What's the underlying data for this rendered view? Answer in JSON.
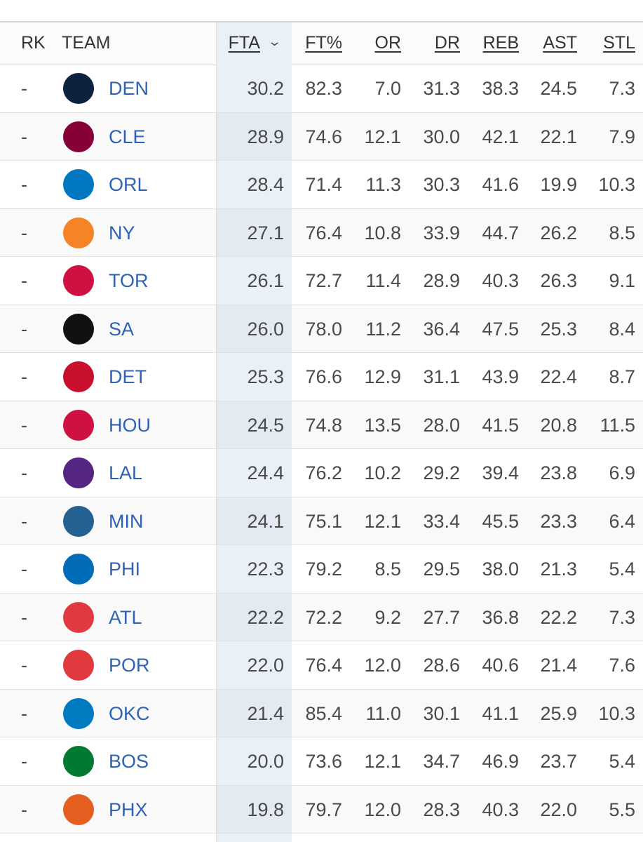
{
  "table": {
    "headers": [
      "RK",
      "TEAM",
      "FTA",
      "FT%",
      "OR",
      "DR",
      "REB",
      "AST",
      "STL"
    ],
    "rows": [
      [
        "-",
        "DEN",
        "30.2",
        "82.3",
        "7.0",
        "31.3",
        "38.3",
        "24.5",
        "7.3"
      ],
      [
        "-",
        "CLE",
        "28.9",
        "74.6",
        "12.1",
        "30.0",
        "42.1",
        "22.1",
        "7.9"
      ],
      [
        "-",
        "ORL",
        "28.4",
        "71.4",
        "11.3",
        "30.3",
        "41.6",
        "19.9",
        "10.3"
      ],
      [
        "-",
        "NY",
        "27.1",
        "76.4",
        "10.8",
        "33.9",
        "44.7",
        "26.2",
        "8.5"
      ],
      [
        "-",
        "TOR",
        "26.1",
        "72.7",
        "11.4",
        "28.9",
        "40.3",
        "26.3",
        "9.1"
      ],
      [
        "-",
        "SA",
        "26.0",
        "78.0",
        "11.2",
        "36.4",
        "47.5",
        "25.3",
        "8.4"
      ],
      [
        "-",
        "DET",
        "25.3",
        "76.6",
        "12.9",
        "31.1",
        "43.9",
        "22.4",
        "8.7"
      ],
      [
        "-",
        "HOU",
        "24.5",
        "74.8",
        "13.5",
        "28.0",
        "41.5",
        "20.8",
        "11.5"
      ],
      [
        "-",
        "LAL",
        "24.4",
        "76.2",
        "10.2",
        "29.2",
        "39.4",
        "23.8",
        "6.9"
      ],
      [
        "-",
        "MIN",
        "24.1",
        "75.1",
        "12.1",
        "33.4",
        "45.5",
        "23.3",
        "6.4"
      ],
      [
        "-",
        "PHI",
        "22.3",
        "79.2",
        "8.5",
        "29.5",
        "38.0",
        "21.3",
        "5.4"
      ],
      [
        "-",
        "ATL",
        "22.2",
        "72.2",
        "9.2",
        "27.7",
        "36.8",
        "22.2",
        "7.3"
      ],
      [
        "-",
        "POR",
        "22.0",
        "76.4",
        "12.0",
        "28.6",
        "40.6",
        "21.4",
        "7.6"
      ],
      [
        "-",
        "OKC",
        "21.4",
        "85.4",
        "11.0",
        "30.1",
        "41.1",
        "25.9",
        "10.3"
      ],
      [
        "-",
        "BOS",
        "20.0",
        "73.6",
        "12.1",
        "34.7",
        "46.9",
        "23.7",
        "5.4"
      ],
      [
        "-",
        "PHX",
        "19.8",
        "79.7",
        "12.0",
        "28.3",
        "40.3",
        "22.0",
        "5.5"
      ]
    ]
  }
}
